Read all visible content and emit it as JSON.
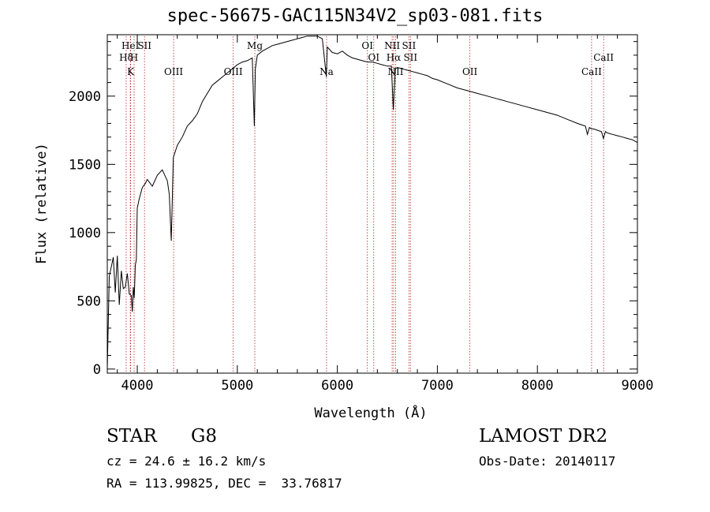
{
  "title": "spec-56675-GAC115N34V2_sp03-081.fits",
  "info": {
    "object_class": "STAR",
    "subclass": "G8",
    "redshift": "cz = 24.6 ± 16.2 km/s",
    "coords": "RA = 113.99825, DEC =  33.76817",
    "survey": "LAMOST DR2",
    "obs_date": "Obs-Date: 20140117"
  },
  "chart_data": {
    "type": "line",
    "title": "spec-56675-GAC115N34V2_sp03-081.fits",
    "xlabel": "Wavelength (Å)",
    "ylabel": "Flux (relative)",
    "xlim": [
      3700,
      9000
    ],
    "ylim": [
      -30,
      2450
    ],
    "x_ticks": [
      4000,
      5000,
      6000,
      7000,
      8000,
      9000
    ],
    "y_ticks": [
      0,
      500,
      1000,
      1500,
      2000
    ],
    "series": [
      {
        "x": [
          3700,
          3720,
          3740,
          3760,
          3780,
          3800,
          3820,
          3840,
          3860,
          3880,
          3900,
          3920,
          3940,
          3950,
          3960,
          3970,
          3980,
          3990,
          4000,
          4020,
          4050,
          4080,
          4100,
          4150,
          4200,
          4250,
          4300,
          4320,
          4340,
          4360,
          4400,
          4450,
          4500,
          4550,
          4600,
          4650,
          4700,
          4750,
          4800,
          4850,
          4900,
          4950,
          5000,
          5050,
          5100,
          5150,
          5170,
          5180,
          5200,
          5250,
          5300,
          5350,
          5400,
          5450,
          5500,
          5550,
          5600,
          5650,
          5700,
          5750,
          5800,
          5850,
          5890,
          5900,
          5950,
          6000,
          6050,
          6100,
          6150,
          6200,
          6250,
          6300,
          6350,
          6400,
          6450,
          6500,
          6540,
          6560,
          6570,
          6580,
          6600,
          6650,
          6700,
          6750,
          6800,
          6850,
          6900,
          6950,
          7000,
          7100,
          7200,
          7300,
          7400,
          7500,
          7600,
          7700,
          7800,
          7900,
          8000,
          8100,
          8200,
          8300,
          8400,
          8480,
          8500,
          8520,
          8540,
          8560,
          8600,
          8640,
          8660,
          8680,
          8700,
          8750,
          8800,
          8850,
          8900,
          8950,
          9000
        ],
        "values": [
          0,
          680,
          750,
          820,
          560,
          830,
          470,
          720,
          590,
          600,
          700,
          550,
          540,
          420,
          600,
          520,
          760,
          800,
          1180,
          1250,
          1330,
          1360,
          1390,
          1340,
          1420,
          1460,
          1380,
          1280,
          940,
          1550,
          1640,
          1700,
          1780,
          1820,
          1870,
          1960,
          2020,
          2080,
          2110,
          2140,
          2170,
          2200,
          2230,
          2250,
          2260,
          2280,
          1780,
          2200,
          2300,
          2330,
          2350,
          2370,
          2380,
          2390,
          2400,
          2410,
          2420,
          2430,
          2440,
          2440,
          2440,
          2420,
          2140,
          2360,
          2320,
          2310,
          2330,
          2300,
          2280,
          2270,
          2260,
          2250,
          2250,
          2240,
          2230,
          2220,
          2220,
          1900,
          2060,
          2200,
          2210,
          2200,
          2190,
          2180,
          2170,
          2160,
          2150,
          2130,
          2120,
          2090,
          2060,
          2040,
          2020,
          2000,
          1980,
          1960,
          1940,
          1920,
          1900,
          1880,
          1860,
          1830,
          1800,
          1780,
          1720,
          1770,
          1760,
          1760,
          1750,
          1740,
          1690,
          1740,
          1730,
          1720,
          1710,
          1700,
          1690,
          1680,
          1660
        ]
      }
    ],
    "line_markers": [
      {
        "label": "Hδ",
        "x": 3889
      },
      {
        "label": "HeI",
        "x": 3930
      },
      {
        "label": "K",
        "x": 3934
      },
      {
        "label": "H",
        "x": 3968
      },
      {
        "label": "SII",
        "x": 4072
      },
      {
        "label": "OIII",
        "x": 4363
      },
      {
        "label": "OIII",
        "x": 4959
      },
      {
        "label": "Mg",
        "x": 5175
      },
      {
        "label": "Na",
        "x": 5892
      },
      {
        "label": "OI",
        "x": 6300
      },
      {
        "label": "OI",
        "x": 6364
      },
      {
        "label": "NII",
        "x": 6548
      },
      {
        "label": "Hα",
        "x": 6563
      },
      {
        "label": "NII",
        "x": 6583
      },
      {
        "label": "SII",
        "x": 6716
      },
      {
        "label": "SII",
        "x": 6731
      },
      {
        "label": "OII",
        "x": 7325
      },
      {
        "label": "CaII",
        "x": 8542
      },
      {
        "label": "CaII",
        "x": 8662
      }
    ]
  }
}
